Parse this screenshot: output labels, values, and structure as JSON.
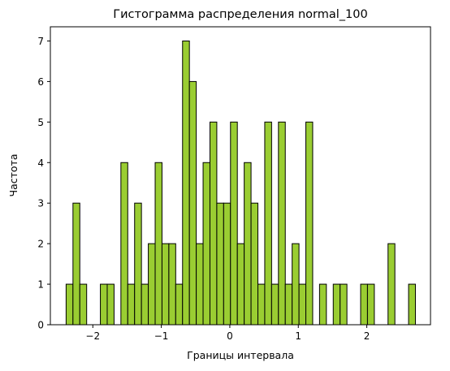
{
  "chart_data": {
    "type": "bar",
    "title": "Гистограмма распределения normal_100",
    "xlabel": "Границы интервала",
    "ylabel": "Частота",
    "x_range": [
      -2.62,
      2.93
    ],
    "ylim": [
      0,
      7.35
    ],
    "x_ticks": [
      -2,
      -1,
      0,
      1,
      2
    ],
    "x_tick_labels": [
      "−2",
      "−1",
      "0",
      "1",
      "2"
    ],
    "y_ticks": [
      0,
      1,
      2,
      3,
      4,
      5,
      6,
      7
    ],
    "y_tick_labels": [
      "0",
      "1",
      "2",
      "3",
      "4",
      "5",
      "6",
      "7"
    ],
    "bin_start": -2.39,
    "bin_width": 0.1,
    "counts": [
      1,
      3,
      1,
      0,
      0,
      1,
      1,
      0,
      4,
      1,
      3,
      1,
      2,
      4,
      2,
      2,
      1,
      7,
      6,
      2,
      4,
      5,
      3,
      3,
      5,
      2,
      4,
      3,
      1,
      5,
      1,
      5,
      1,
      2,
      1,
      5,
      0,
      1,
      0,
      1,
      1,
      0,
      0,
      1,
      1,
      0,
      0,
      2,
      0,
      0,
      1
    ],
    "grid": false,
    "colors": {
      "bar_fill": "#9ACD32",
      "bar_edge": "#000000"
    }
  }
}
